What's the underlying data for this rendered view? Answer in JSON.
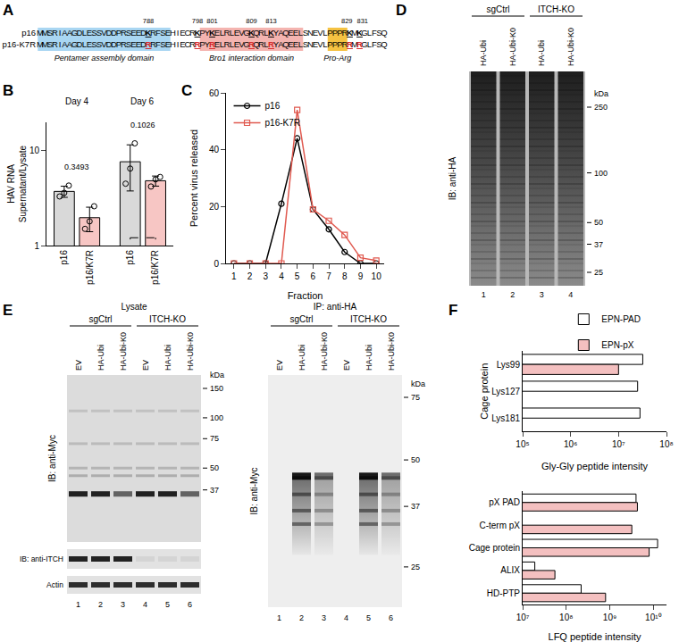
{
  "panel_labels": [
    "A",
    "B",
    "C",
    "D",
    "E",
    "F"
  ],
  "sequence_panel": {
    "numbers": [
      788,
      798,
      801,
      809,
      813,
      829,
      831
    ],
    "rows": [
      {
        "name": "p16",
        "sequence": "MMSRIAAGDLESSVDDPRSEEDKRFSEHIECRKPYKELRLEVGKQRLKYAQEELSNEVLPPPRKMKGLFSQ"
      },
      {
        "name": "p16-K7R",
        "sequence": "MMSRIAAGDLESSVDDPRSEEDRRFSEHIECRRPYRELRLEVGRQRLRYAQEELSNEVLPPPRRMRGLFSQ"
      }
    ],
    "domains": [
      {
        "label": "Pentamer assembly domain",
        "segment": "MMSRIAAGDLESSVDDPRSEEDKRFSE",
        "color": "#a9d6f2"
      },
      {
        "label": "Bro1 interaction domain",
        "segment": "PYKELRLEVGKQRLKYAQEEL",
        "color": "#f4b4b0"
      },
      {
        "label": "Pro-Arg",
        "segment": "PPPR",
        "color": "#f5c242"
      }
    ]
  },
  "chart_data": [
    {
      "type": "bar",
      "ylabel": [
        "HAV RNA",
        "Supernatant/Lysate"
      ],
      "categories": [
        "Day 4",
        "Day 6"
      ],
      "series": [
        {
          "name": "p16",
          "color": "#d9d9d9",
          "values": [
            3.73,
            7.67
          ],
          "error": [
            0.5,
            3.9
          ],
          "points": [
            [
              3.3,
              3.6,
              4.3
            ],
            [
              4.5,
              6.5,
              12
            ]
          ]
        },
        {
          "name": "p16/K7R",
          "color": "#f7c6c4",
          "values": [
            1.97,
            4.83
          ],
          "error": [
            0.57,
            0.59
          ],
          "points": [
            [
              1.5,
              1.8,
              2.6
            ],
            [
              4.2,
              5.0,
              5.3
            ]
          ]
        }
      ],
      "comparisons": [
        {
          "category": "Day 4",
          "p": 0.3493
        },
        {
          "category": "Day 6",
          "p": 0.1026
        }
      ],
      "log": "y",
      "ylim": [
        1,
        20
      ],
      "yticks": [
        1,
        10
      ],
      "grid": false,
      "marker": "circle-open"
    },
    {
      "type": "line",
      "xlabel": "Fraction",
      "ylabel": "Percent virus released",
      "x": [
        1,
        2,
        3,
        4,
        5,
        6,
        7,
        8,
        9,
        10
      ],
      "series": [
        {
          "name": "p16",
          "color": "#000000",
          "marker": "circle-open",
          "values": [
            0,
            0,
            0,
            21,
            44,
            19,
            12,
            4,
            0,
            0
          ]
        },
        {
          "name": "p16-K7R",
          "color": "#e05a50",
          "marker": "square-open",
          "values": [
            0,
            0,
            0,
            0,
            54,
            19,
            15,
            10,
            2,
            1
          ]
        }
      ],
      "xlim": [
        0.5,
        10.5
      ],
      "xticks": [
        1,
        2,
        3,
        4,
        5,
        6,
        7,
        8,
        9,
        10
      ],
      "ylim": [
        0,
        60
      ],
      "yticks": [
        0,
        20,
        40,
        60
      ],
      "legend": "top-left",
      "grid": false
    },
    {
      "type": "bar",
      "orientation": "horizontal",
      "log": "x",
      "legend": "top",
      "grid": false,
      "series": [
        {
          "name": "EPN-PAD",
          "color": "#ffffff"
        },
        {
          "name": "EPN-pX",
          "color": "#f4c0c0"
        }
      ],
      "subplots": [
        {
          "ylabel": "Cage protein",
          "xlabel": "Gly-Gly peptide intensity",
          "categories": [
            "Lys99",
            "Lys127",
            "Lys181"
          ],
          "values": {
            "EPN-PAD": [
              32000000,
              25000000,
              28000000
            ],
            "EPN-pX": [
              10000000,
              null,
              null
            ]
          },
          "xlim": [
            100000,
            100000000
          ],
          "xticks": [
            {
              "value": 100000,
              "label": "10⁵"
            },
            {
              "value": 1000000,
              "label": "10⁶"
            },
            {
              "value": 10000000,
              "label": "10⁷"
            },
            {
              "value": 100000000,
              "label": "10⁸"
            }
          ]
        },
        {
          "xlabel": "LFQ peptide intensity",
          "categories": [
            "pX PAD",
            "C-term pX",
            "Cage protein",
            "ALIX",
            "HD-PTP"
          ],
          "values": {
            "EPN-PAD": [
              4000000000,
              null,
              12500000000,
              19000000,
              220000000
            ],
            "EPN-pX": [
              4300000000,
              3200000000,
              8000000000,
              55000000,
              800000000
            ]
          },
          "xlim": [
            10000000,
            20000000000
          ],
          "xticks": [
            {
              "value": 10000000,
              "label": "10⁷"
            },
            {
              "value": 100000000,
              "label": "10⁸"
            },
            {
              "value": 1000000000,
              "label": "10⁹"
            },
            {
              "value": 10000000000,
              "label": "10¹⁰"
            }
          ]
        }
      ]
    }
  ],
  "blots": {
    "D": {
      "groups": [
        "sgCtrl",
        "ITCH-KO"
      ],
      "lanes": [
        "HA-Ubi",
        "HA-Ubi-K0",
        "HA-Ubi",
        "HA-Ubi-K0"
      ],
      "lane_numbers": [
        1,
        2,
        3,
        4
      ],
      "markers": [
        250,
        100,
        50,
        37,
        25
      ],
      "unit": "kDa",
      "ib": "IB: anti-HA"
    },
    "E": {
      "lysate_title": "Lysate",
      "ip_title": "IP: anti-HA",
      "groups": [
        "sgCtrl",
        "ITCH-KO"
      ],
      "lanes": [
        "EV",
        "HA-Ubi",
        "HA-Ubi-K0",
        "EV",
        "HA-Ubi",
        "HA-Ubi-K0"
      ],
      "lane_numbers": [
        1,
        2,
        3,
        4,
        5,
        6
      ],
      "lysate_markers": [
        150,
        100,
        75,
        50,
        37
      ],
      "ip_markers": [
        75,
        50,
        37,
        25
      ],
      "unit": "kDa",
      "lysate_ib": [
        "IB: anti-Myc",
        "IB: anti-ITCH",
        "Actin"
      ],
      "ip_ib": "IB: anti-Myc"
    }
  }
}
